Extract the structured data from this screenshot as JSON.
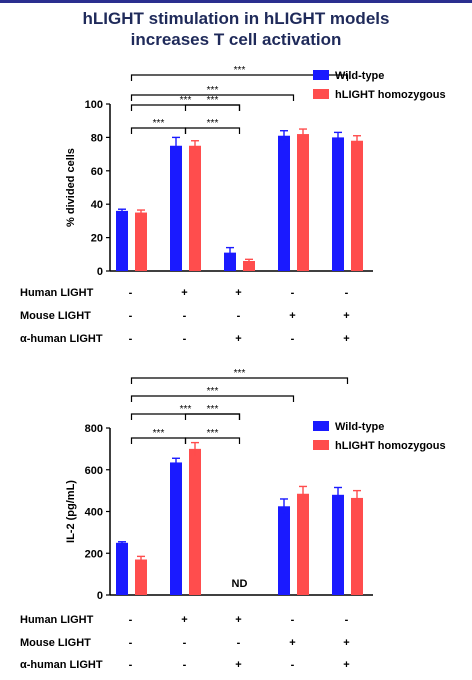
{
  "title": {
    "line1": "hLIGHT stimulation in hLIGHT models",
    "line2": "increases T cell activation"
  },
  "colors": {
    "wild_type": "#1a1aff",
    "hlight_homozygous": "#ff4d4d",
    "axis": "#000000",
    "title": "#1f2a5a"
  },
  "condition_rows": [
    {
      "label": "Human LIGHT",
      "values": [
        "-",
        "+",
        "+",
        "-",
        "-"
      ]
    },
    {
      "label": "Mouse LIGHT",
      "values": [
        "-",
        "-",
        "-",
        "+",
        "+"
      ]
    },
    {
      "label": "α-human LIGHT",
      "values": [
        "-",
        "-",
        "+",
        "-",
        "+"
      ]
    }
  ],
  "chart_data": [
    {
      "type": "bar",
      "ylabel": "% divided cells",
      "ylim": [
        0,
        100
      ],
      "yticks": [
        0,
        20,
        40,
        60,
        80,
        100
      ],
      "groups": 5,
      "legend_placement": "top-right",
      "series": [
        {
          "name": "Wild-type",
          "values": [
            36,
            75,
            11,
            81,
            80
          ],
          "errors": [
            1,
            5,
            3,
            3,
            3
          ]
        },
        {
          "name": "hLIGHT homozygous",
          "values": [
            35,
            75,
            6,
            82,
            78
          ],
          "errors": [
            1.5,
            3,
            1,
            3,
            3
          ]
        }
      ],
      "significance": [
        {
          "from": 0,
          "to": 1,
          "label": "***"
        },
        {
          "from": 1,
          "to": 2,
          "label": "***"
        },
        {
          "from": 1,
          "to": 2,
          "label": "***",
          "tier": 2
        },
        {
          "from": 0,
          "to": 2,
          "label": "***"
        },
        {
          "from": 0,
          "to": 3,
          "label": "***"
        },
        {
          "from": 0,
          "to": 4,
          "label": "***"
        }
      ],
      "annotations": []
    },
    {
      "type": "bar",
      "ylabel": "IL-2 (pg/mL)",
      "ylim": [
        0,
        800
      ],
      "yticks": [
        0,
        200,
        400,
        600,
        800
      ],
      "groups": 5,
      "legend_placement": "top-right",
      "series": [
        {
          "name": "Wild-type",
          "values": [
            250,
            635,
            null,
            425,
            480
          ],
          "errors": [
            5,
            20,
            null,
            35,
            35
          ]
        },
        {
          "name": "hLIGHT homozygous",
          "values": [
            170,
            700,
            null,
            485,
            465
          ],
          "errors": [
            15,
            30,
            null,
            35,
            35
          ]
        }
      ],
      "significance": [
        {
          "from": 0,
          "to": 1,
          "label": "***"
        },
        {
          "from": 1,
          "to": 2,
          "label": "***"
        },
        {
          "from": 1,
          "to": 2,
          "label": "***",
          "tier": 2
        },
        {
          "from": 0,
          "to": 2,
          "label": "***"
        },
        {
          "from": 0,
          "to": 3,
          "label": "***"
        },
        {
          "from": 0,
          "to": 4,
          "label": "***"
        }
      ],
      "annotations": [
        {
          "group": 2,
          "text": "ND"
        }
      ]
    }
  ]
}
